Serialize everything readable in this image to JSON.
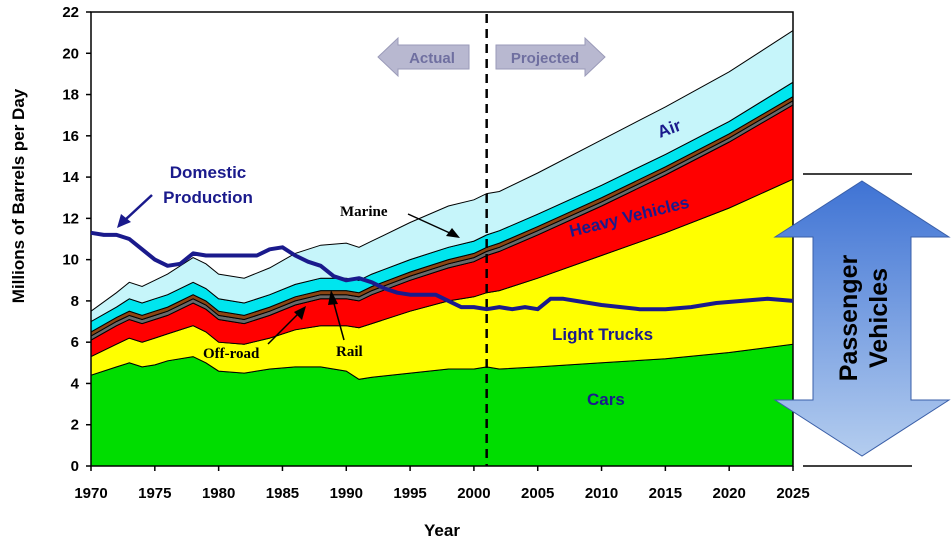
{
  "chart_data": {
    "type": "area",
    "title": "",
    "xlabel": "Year",
    "ylabel": "Millions of Barrels per Day",
    "xlim": [
      1970,
      2025
    ],
    "ylim": [
      0,
      22
    ],
    "xticks": [
      "1970",
      "1975",
      "1980",
      "1985",
      "1990",
      "1995",
      "2000",
      "2005",
      "2010",
      "2015",
      "2020",
      "2025"
    ],
    "yticks": [
      "0",
      "2",
      "4",
      "6",
      "8",
      "10",
      "12",
      "14",
      "16",
      "18",
      "20",
      "22"
    ],
    "projection_start_year": 2001,
    "x": [
      1970,
      1972,
      1973,
      1974,
      1975,
      1976,
      1978,
      1979,
      1980,
      1982,
      1984,
      1986,
      1988,
      1990,
      1991,
      1992,
      1995,
      1998,
      2000,
      2001,
      2002,
      2005,
      2010,
      2015,
      2020,
      2025
    ],
    "series": [
      {
        "name": "Cars",
        "color": "#00dd00",
        "values": [
          4.4,
          4.8,
          5.0,
          4.8,
          4.9,
          5.1,
          5.3,
          5.0,
          4.6,
          4.5,
          4.7,
          4.8,
          4.8,
          4.6,
          4.2,
          4.3,
          4.5,
          4.7,
          4.7,
          4.8,
          4.7,
          4.8,
          5.0,
          5.2,
          5.5,
          5.9
        ]
      },
      {
        "name": "Light Trucks",
        "color": "#ffff00",
        "values": [
          0.9,
          1.1,
          1.2,
          1.2,
          1.3,
          1.3,
          1.5,
          1.5,
          1.4,
          1.4,
          1.5,
          1.8,
          2.0,
          2.2,
          2.5,
          2.6,
          3.0,
          3.3,
          3.5,
          3.6,
          3.8,
          4.3,
          5.2,
          6.1,
          7.0,
          8.0
        ]
      },
      {
        "name": "Heavy Vehicles",
        "color": "#ff0000",
        "values": [
          0.8,
          0.9,
          0.9,
          0.9,
          0.9,
          0.9,
          1.1,
          1.1,
          1.1,
          1.0,
          1.1,
          1.2,
          1.3,
          1.3,
          1.3,
          1.4,
          1.5,
          1.6,
          1.7,
          1.8,
          1.9,
          2.1,
          2.4,
          2.8,
          3.2,
          3.6
        ]
      },
      {
        "name": "Off-road",
        "color": "#696969",
        "values": [
          0.2,
          0.2,
          0.2,
          0.2,
          0.2,
          0.2,
          0.2,
          0.2,
          0.2,
          0.2,
          0.2,
          0.2,
          0.2,
          0.2,
          0.2,
          0.2,
          0.2,
          0.2,
          0.2,
          0.2,
          0.2,
          0.2,
          0.2,
          0.2,
          0.2,
          0.2
        ]
      },
      {
        "name": "Rail",
        "color": "#8b4513",
        "values": [
          0.2,
          0.2,
          0.2,
          0.2,
          0.2,
          0.2,
          0.2,
          0.2,
          0.2,
          0.2,
          0.2,
          0.2,
          0.2,
          0.2,
          0.2,
          0.2,
          0.2,
          0.2,
          0.2,
          0.2,
          0.2,
          0.2,
          0.2,
          0.2,
          0.2,
          0.2
        ]
      },
      {
        "name": "Marine",
        "color": "#00e5ee",
        "values": [
          0.5,
          0.5,
          0.6,
          0.6,
          0.6,
          0.6,
          0.6,
          0.6,
          0.6,
          0.6,
          0.6,
          0.6,
          0.6,
          0.6,
          0.6,
          0.6,
          0.6,
          0.6,
          0.6,
          0.6,
          0.6,
          0.6,
          0.6,
          0.6,
          0.6,
          0.7
        ]
      },
      {
        "name": "Air",
        "color": "#c6f5fa",
        "values": [
          0.5,
          0.7,
          0.8,
          0.8,
          0.9,
          1.0,
          1.2,
          1.2,
          1.2,
          1.2,
          1.3,
          1.5,
          1.6,
          1.7,
          1.6,
          1.6,
          1.8,
          2.0,
          2.0,
          2.0,
          1.9,
          2.0,
          2.2,
          2.3,
          2.4,
          2.5
        ]
      }
    ],
    "domestic_production": {
      "name": "Domestic Production",
      "color": "#1a1a8c",
      "x": [
        1970,
        1971,
        1972,
        1973,
        1974,
        1975,
        1976,
        1977,
        1978,
        1979,
        1980,
        1981,
        1982,
        1983,
        1984,
        1985,
        1986,
        1987,
        1988,
        1989,
        1990,
        1991,
        1992,
        1993,
        1994,
        1995,
        1996,
        1997,
        1998,
        1999,
        2000,
        2001,
        2002,
        2003,
        2004,
        2005,
        2006,
        2007,
        2008,
        2010,
        2013,
        2015,
        2017,
        2019,
        2021,
        2023,
        2025
      ],
      "y": [
        11.3,
        11.2,
        11.2,
        11.0,
        10.5,
        10.0,
        9.7,
        9.8,
        10.3,
        10.2,
        10.2,
        10.2,
        10.2,
        10.2,
        10.5,
        10.6,
        10.2,
        9.9,
        9.7,
        9.2,
        9.0,
        9.1,
        8.9,
        8.6,
        8.4,
        8.3,
        8.3,
        8.3,
        8.0,
        7.7,
        7.7,
        7.6,
        7.7,
        7.6,
        7.7,
        7.6,
        8.1,
        8.1,
        8.0,
        7.8,
        7.6,
        7.6,
        7.7,
        7.9,
        8.0,
        8.1,
        8.0
      ]
    }
  },
  "labels": {
    "actual": "Actual",
    "projected": "Projected",
    "domestic_line1": "Domestic",
    "domestic_line2": "Production",
    "air": "Air",
    "heavy_vehicles": "Heavy Vehicles",
    "marine": "Marine",
    "light_trucks": "Light Trucks",
    "off_road": "Off-road",
    "rail": "Rail",
    "cars": "Cars",
    "passenger_line1": "Passenger",
    "passenger_line2": "Vehicles"
  },
  "colors": {
    "arrow_gray": "#b8b8d0",
    "passenger_arrow_top": "#4a7dd8",
    "passenger_arrow_bottom": "#a8c4ec"
  }
}
